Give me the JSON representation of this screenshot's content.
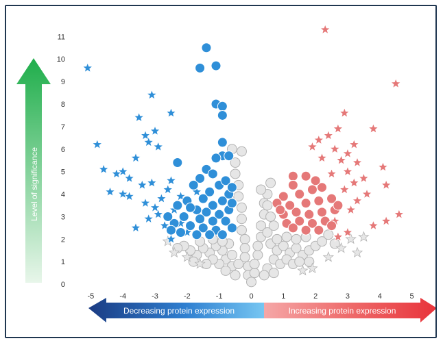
{
  "chart_data": {
    "type": "scatter",
    "xlim": [
      -5.5,
      5.5
    ],
    "ylim": [
      -0.3,
      11.8
    ],
    "x_ticks": [
      -5,
      -4,
      -3,
      -2,
      -1,
      0,
      1,
      2,
      3,
      4,
      5
    ],
    "y_ticks": [
      0,
      1,
      2,
      3,
      4,
      5,
      6,
      7,
      8,
      9,
      10,
      11
    ],
    "ylabel": "Level of significance",
    "x_arrow_left_label": "Decreasing protein expression",
    "x_arrow_right_label": "Increasing protein expression",
    "colors": {
      "decreased": "#2f8fd8",
      "increased": "#e57878",
      "nonsignificant": "#e6e6e6",
      "outline_gray": "#b3b3b3",
      "sig_arrow_top": "#1fae4b",
      "sig_arrow_bottom": "#e8f6ea",
      "left_arrow": "#1b3c83",
      "right_arrow": "#e8333a"
    },
    "series": [
      {
        "key": "decreased",
        "points": [
          [
            -5.1,
            9.6,
            "star"
          ],
          [
            -3.1,
            8.4,
            "star"
          ],
          [
            -3.5,
            7.4,
            "star"
          ],
          [
            -2.5,
            7.6,
            "star"
          ],
          [
            -3.0,
            6.8,
            "star"
          ],
          [
            -3.3,
            6.6,
            "star"
          ],
          [
            -3.2,
            6.3,
            "star"
          ],
          [
            -4.8,
            6.2,
            "star"
          ],
          [
            -2.9,
            6.1,
            "star"
          ],
          [
            -3.6,
            5.6,
            "star"
          ],
          [
            -4.6,
            5.1,
            "star"
          ],
          [
            -4.0,
            5.0,
            "star"
          ],
          [
            -4.2,
            4.9,
            "star"
          ],
          [
            -3.8,
            4.7,
            "star"
          ],
          [
            -3.1,
            4.5,
            "star"
          ],
          [
            -3.4,
            4.4,
            "star"
          ],
          [
            -4.4,
            4.1,
            "star"
          ],
          [
            -4.0,
            4.0,
            "star"
          ],
          [
            -3.8,
            3.9,
            "star"
          ],
          [
            -2.6,
            4.2,
            "star"
          ],
          [
            -3.3,
            3.6,
            "star"
          ],
          [
            -3.0,
            3.4,
            "star"
          ],
          [
            -2.4,
            3.3,
            "star"
          ],
          [
            -3.2,
            2.9,
            "star"
          ],
          [
            -2.7,
            2.6,
            "star"
          ],
          [
            -3.6,
            2.5,
            "star"
          ],
          [
            -2.2,
            2.7,
            "star"
          ],
          [
            -2.8,
            3.8,
            "star"
          ],
          [
            -2.5,
            4.6,
            "star"
          ],
          [
            -2.2,
            3.9,
            "star"
          ],
          [
            -2.9,
            3.1,
            "star"
          ],
          [
            -1.7,
            4.1,
            "star"
          ],
          [
            -2.0,
            2.3,
            "star"
          ],
          [
            -2.5,
            2.0,
            "star"
          ],
          [
            -1.4,
            10.5,
            "circle"
          ],
          [
            -1.6,
            9.6,
            "circle"
          ],
          [
            -1.1,
            9.7,
            "circle"
          ],
          [
            -1.1,
            8.0,
            "circle"
          ],
          [
            -0.9,
            7.9,
            "circle"
          ],
          [
            -0.9,
            7.5,
            "circle"
          ],
          [
            -0.9,
            6.3,
            "circle"
          ],
          [
            -0.9,
            5.7,
            "circle"
          ],
          [
            -1.1,
            5.6,
            "circle"
          ],
          [
            -0.7,
            5.7,
            "circle"
          ],
          [
            -2.3,
            5.4,
            "circle"
          ],
          [
            -1.4,
            5.1,
            "circle"
          ],
          [
            -1.2,
            4.9,
            "circle"
          ],
          [
            -1.6,
            4.7,
            "circle"
          ],
          [
            -1.0,
            4.4,
            "circle"
          ],
          [
            -0.8,
            4.6,
            "circle"
          ],
          [
            -1.3,
            4.1,
            "circle"
          ],
          [
            -1.8,
            4.4,
            "circle"
          ],
          [
            -1.5,
            3.8,
            "circle"
          ],
          [
            -0.7,
            4.0,
            "circle"
          ],
          [
            -2.0,
            3.7,
            "circle"
          ],
          [
            -1.2,
            3.5,
            "circle"
          ],
          [
            -0.9,
            3.7,
            "circle"
          ],
          [
            -2.3,
            3.5,
            "circle"
          ],
          [
            -1.7,
            3.3,
            "circle"
          ],
          [
            -1.4,
            3.2,
            "circle"
          ],
          [
            -1.0,
            3.1,
            "circle"
          ],
          [
            -0.7,
            3.3,
            "circle"
          ],
          [
            -2.1,
            3.0,
            "circle"
          ],
          [
            -1.6,
            2.9,
            "circle"
          ],
          [
            -1.2,
            2.8,
            "circle"
          ],
          [
            -0.8,
            2.8,
            "circle"
          ],
          [
            -2.4,
            2.7,
            "circle"
          ],
          [
            -1.9,
            2.6,
            "circle"
          ],
          [
            -1.5,
            2.5,
            "circle"
          ],
          [
            -1.1,
            2.4,
            "circle"
          ],
          [
            -0.6,
            2.5,
            "circle"
          ],
          [
            -2.2,
            2.3,
            "circle"
          ],
          [
            -1.7,
            2.2,
            "circle"
          ],
          [
            -1.3,
            2.2,
            "circle"
          ],
          [
            -0.9,
            2.2,
            "circle"
          ],
          [
            -0.6,
            3.6,
            "circle"
          ],
          [
            -0.6,
            4.3,
            "circle"
          ],
          [
            -2.6,
            3.0,
            "circle"
          ],
          [
            -1.9,
            3.4,
            "circle"
          ],
          [
            -2.5,
            2.4,
            "circle"
          ]
        ]
      },
      {
        "key": "increased",
        "points": [
          [
            2.3,
            11.3,
            "star"
          ],
          [
            4.5,
            8.9,
            "star"
          ],
          [
            2.9,
            7.6,
            "star"
          ],
          [
            3.8,
            6.9,
            "star"
          ],
          [
            2.7,
            6.9,
            "star"
          ],
          [
            2.4,
            6.6,
            "star"
          ],
          [
            2.1,
            6.4,
            "star"
          ],
          [
            1.9,
            6.1,
            "star"
          ],
          [
            3.2,
            6.2,
            "star"
          ],
          [
            2.6,
            6.0,
            "star"
          ],
          [
            3.0,
            5.8,
            "star"
          ],
          [
            2.2,
            5.6,
            "star"
          ],
          [
            2.8,
            5.5,
            "star"
          ],
          [
            3.3,
            5.4,
            "star"
          ],
          [
            4.1,
            5.2,
            "star"
          ],
          [
            3.0,
            5.0,
            "star"
          ],
          [
            2.5,
            4.9,
            "star"
          ],
          [
            3.5,
            4.7,
            "star"
          ],
          [
            3.2,
            4.5,
            "star"
          ],
          [
            4.2,
            4.4,
            "star"
          ],
          [
            2.9,
            4.2,
            "star"
          ],
          [
            3.6,
            4.0,
            "star"
          ],
          [
            3.3,
            3.7,
            "star"
          ],
          [
            4.6,
            3.1,
            "star"
          ],
          [
            4.2,
            2.8,
            "star"
          ],
          [
            3.8,
            2.6,
            "star"
          ],
          [
            3.0,
            2.3,
            "star"
          ],
          [
            2.7,
            2.1,
            "star"
          ],
          [
            3.1,
            3.3,
            "star"
          ],
          [
            2.6,
            2.8,
            "star"
          ],
          [
            1.3,
            4.8,
            "circle"
          ],
          [
            1.7,
            4.8,
            "circle"
          ],
          [
            1.3,
            4.4,
            "circle"
          ],
          [
            1.0,
            3.9,
            "circle"
          ],
          [
            1.5,
            4.0,
            "circle"
          ],
          [
            1.9,
            4.2,
            "circle"
          ],
          [
            2.2,
            4.3,
            "circle"
          ],
          [
            0.8,
            3.6,
            "circle"
          ],
          [
            1.2,
            3.5,
            "circle"
          ],
          [
            1.7,
            3.6,
            "circle"
          ],
          [
            2.1,
            3.7,
            "circle"
          ],
          [
            2.5,
            3.8,
            "circle"
          ],
          [
            1.0,
            3.1,
            "circle"
          ],
          [
            1.4,
            3.2,
            "circle"
          ],
          [
            1.8,
            3.1,
            "circle"
          ],
          [
            2.2,
            3.2,
            "circle"
          ],
          [
            2.6,
            3.3,
            "circle"
          ],
          [
            1.1,
            2.7,
            "circle"
          ],
          [
            1.5,
            2.8,
            "circle"
          ],
          [
            1.9,
            2.7,
            "circle"
          ],
          [
            2.3,
            2.8,
            "circle"
          ],
          [
            2.7,
            3.5,
            "circle"
          ],
          [
            1.3,
            2.5,
            "circle"
          ],
          [
            1.7,
            2.4,
            "circle"
          ],
          [
            2.1,
            2.4,
            "circle"
          ],
          [
            2.5,
            2.6,
            "circle"
          ],
          [
            0.9,
            3.3,
            "circle"
          ],
          [
            2.0,
            4.6,
            "circle"
          ]
        ]
      },
      {
        "key": "nonsignificant",
        "points": [
          [
            -0.6,
            6.0,
            "circle"
          ],
          [
            -0.5,
            5.4,
            "circle"
          ],
          [
            -0.5,
            4.9,
            "circle"
          ],
          [
            -0.4,
            4.4,
            "circle"
          ],
          [
            -0.4,
            3.9,
            "circle"
          ],
          [
            -0.3,
            3.4,
            "circle"
          ],
          [
            -0.3,
            2.9,
            "circle"
          ],
          [
            -0.3,
            2.4,
            "circle"
          ],
          [
            -0.2,
            2.0,
            "circle"
          ],
          [
            -0.2,
            1.6,
            "circle"
          ],
          [
            -0.2,
            1.2,
            "circle"
          ],
          [
            -0.1,
            0.8,
            "circle"
          ],
          [
            -0.1,
            0.4,
            "circle"
          ],
          [
            0.0,
            0.1,
            "circle"
          ],
          [
            0.1,
            0.5,
            "circle"
          ],
          [
            0.1,
            0.9,
            "circle"
          ],
          [
            0.2,
            1.3,
            "circle"
          ],
          [
            0.2,
            1.7,
            "circle"
          ],
          [
            0.3,
            2.1,
            "circle"
          ],
          [
            0.3,
            2.6,
            "circle"
          ],
          [
            0.4,
            3.1,
            "circle"
          ],
          [
            0.4,
            3.6,
            "circle"
          ],
          [
            0.5,
            4.0,
            "circle"
          ],
          [
            0.6,
            4.5,
            "circle"
          ],
          [
            -0.7,
            1.8,
            "circle"
          ],
          [
            -0.9,
            1.5,
            "circle"
          ],
          [
            -1.1,
            1.7,
            "circle"
          ],
          [
            -1.3,
            1.4,
            "circle"
          ],
          [
            -1.5,
            1.6,
            "circle"
          ],
          [
            -1.7,
            1.3,
            "circle"
          ],
          [
            -1.9,
            1.5,
            "circle"
          ],
          [
            -2.1,
            1.7,
            "circle"
          ],
          [
            -0.8,
            1.1,
            "circle"
          ],
          [
            -1.0,
            0.9,
            "circle"
          ],
          [
            -1.2,
            1.1,
            "circle"
          ],
          [
            -1.4,
            0.9,
            "circle"
          ],
          [
            -0.6,
            0.8,
            "circle"
          ],
          [
            -0.8,
            0.6,
            "circle"
          ],
          [
            -0.5,
            0.4,
            "circle"
          ],
          [
            -0.9,
            1.9,
            "circle"
          ],
          [
            -1.2,
            2.0,
            "circle"
          ],
          [
            -1.6,
            1.9,
            "circle"
          ],
          [
            -0.6,
            1.3,
            "circle"
          ],
          [
            -0.4,
            0.9,
            "circle"
          ],
          [
            0.6,
            1.8,
            "circle"
          ],
          [
            0.8,
            1.5,
            "circle"
          ],
          [
            1.0,
            1.7,
            "circle"
          ],
          [
            1.2,
            1.4,
            "circle"
          ],
          [
            1.4,
            1.6,
            "circle"
          ],
          [
            1.6,
            1.3,
            "circle"
          ],
          [
            1.8,
            1.5,
            "circle"
          ],
          [
            2.0,
            1.7,
            "circle"
          ],
          [
            2.2,
            1.9,
            "circle"
          ],
          [
            0.7,
            1.1,
            "circle"
          ],
          [
            0.9,
            0.9,
            "circle"
          ],
          [
            1.1,
            1.1,
            "circle"
          ],
          [
            1.3,
            0.9,
            "circle"
          ],
          [
            1.5,
            1.0,
            "circle"
          ],
          [
            0.5,
            0.7,
            "circle"
          ],
          [
            0.7,
            0.5,
            "circle"
          ],
          [
            0.4,
            0.4,
            "circle"
          ],
          [
            0.8,
            2.0,
            "circle"
          ],
          [
            1.1,
            2.1,
            "circle"
          ],
          [
            1.4,
            2.0,
            "circle"
          ],
          [
            1.7,
            2.1,
            "circle"
          ],
          [
            2.4,
            2.2,
            "circle"
          ],
          [
            0.5,
            2.3,
            "circle"
          ],
          [
            0.7,
            2.6,
            "circle"
          ],
          [
            0.6,
            3.0,
            "circle"
          ],
          [
            0.5,
            3.5,
            "circle"
          ],
          [
            0.3,
            4.2,
            "circle"
          ],
          [
            1.8,
            1.0,
            "circle"
          ],
          [
            2.6,
            1.8,
            "circle"
          ],
          [
            -2.3,
            1.6,
            "circle"
          ],
          [
            -1.8,
            1.0,
            "circle"
          ],
          [
            -0.3,
            5.9,
            "circle"
          ],
          [
            -2.4,
            1.4,
            "star"
          ],
          [
            -2.0,
            1.2,
            "star"
          ],
          [
            -1.6,
            0.9,
            "star"
          ],
          [
            -2.6,
            1.9,
            "star"
          ],
          [
            2.8,
            1.6,
            "star"
          ],
          [
            3.1,
            2.0,
            "star"
          ],
          [
            3.5,
            2.1,
            "star"
          ],
          [
            2.4,
            1.2,
            "star"
          ],
          [
            1.9,
            0.7,
            "star"
          ],
          [
            3.3,
            1.4,
            "star"
          ],
          [
            1.6,
            0.6,
            "star"
          ]
        ]
      }
    ]
  }
}
